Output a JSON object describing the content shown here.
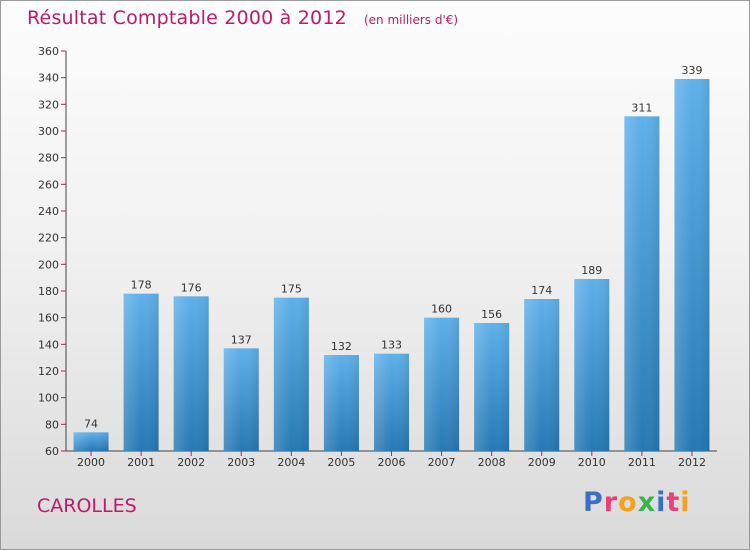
{
  "title": "Résultat Comptable 2000 à 2012",
  "unit": "(en milliers d'€)",
  "commune": "CAROLLES",
  "logo": {
    "text": "Proxiti",
    "letters": [
      {
        "char": "P",
        "color": "#3a6fc4"
      },
      {
        "char": "r",
        "color": "#e8407a"
      },
      {
        "char": "o",
        "color": "#f4a11d"
      },
      {
        "char": "x",
        "color": "#3bb34a"
      },
      {
        "char": "i",
        "color": "#3a6fc4"
      },
      {
        "char": "t",
        "color": "#e8407a"
      },
      {
        "char": "i",
        "color": "#f4a11d"
      }
    ]
  },
  "colors": {
    "bar_light": "#5fb0ea",
    "bar_dark": "#2678b4",
    "title": "#c0186a",
    "tick_mark": "#c0186a"
  },
  "chart_data": {
    "type": "bar",
    "title": "Résultat Comptable 2000 à 2012",
    "xlabel": "",
    "ylabel": "",
    "ylim": [
      60,
      360
    ],
    "yticks": [
      60,
      80,
      100,
      120,
      140,
      160,
      180,
      200,
      220,
      240,
      260,
      280,
      300,
      320,
      340,
      360
    ],
    "grid": false,
    "categories": [
      "2000",
      "2001",
      "2002",
      "2003",
      "2004",
      "2005",
      "2006",
      "2007",
      "2008",
      "2009",
      "2010",
      "2011",
      "2012"
    ],
    "values": [
      74,
      178,
      176,
      137,
      175,
      132,
      133,
      160,
      156,
      174,
      189,
      311,
      339
    ]
  }
}
